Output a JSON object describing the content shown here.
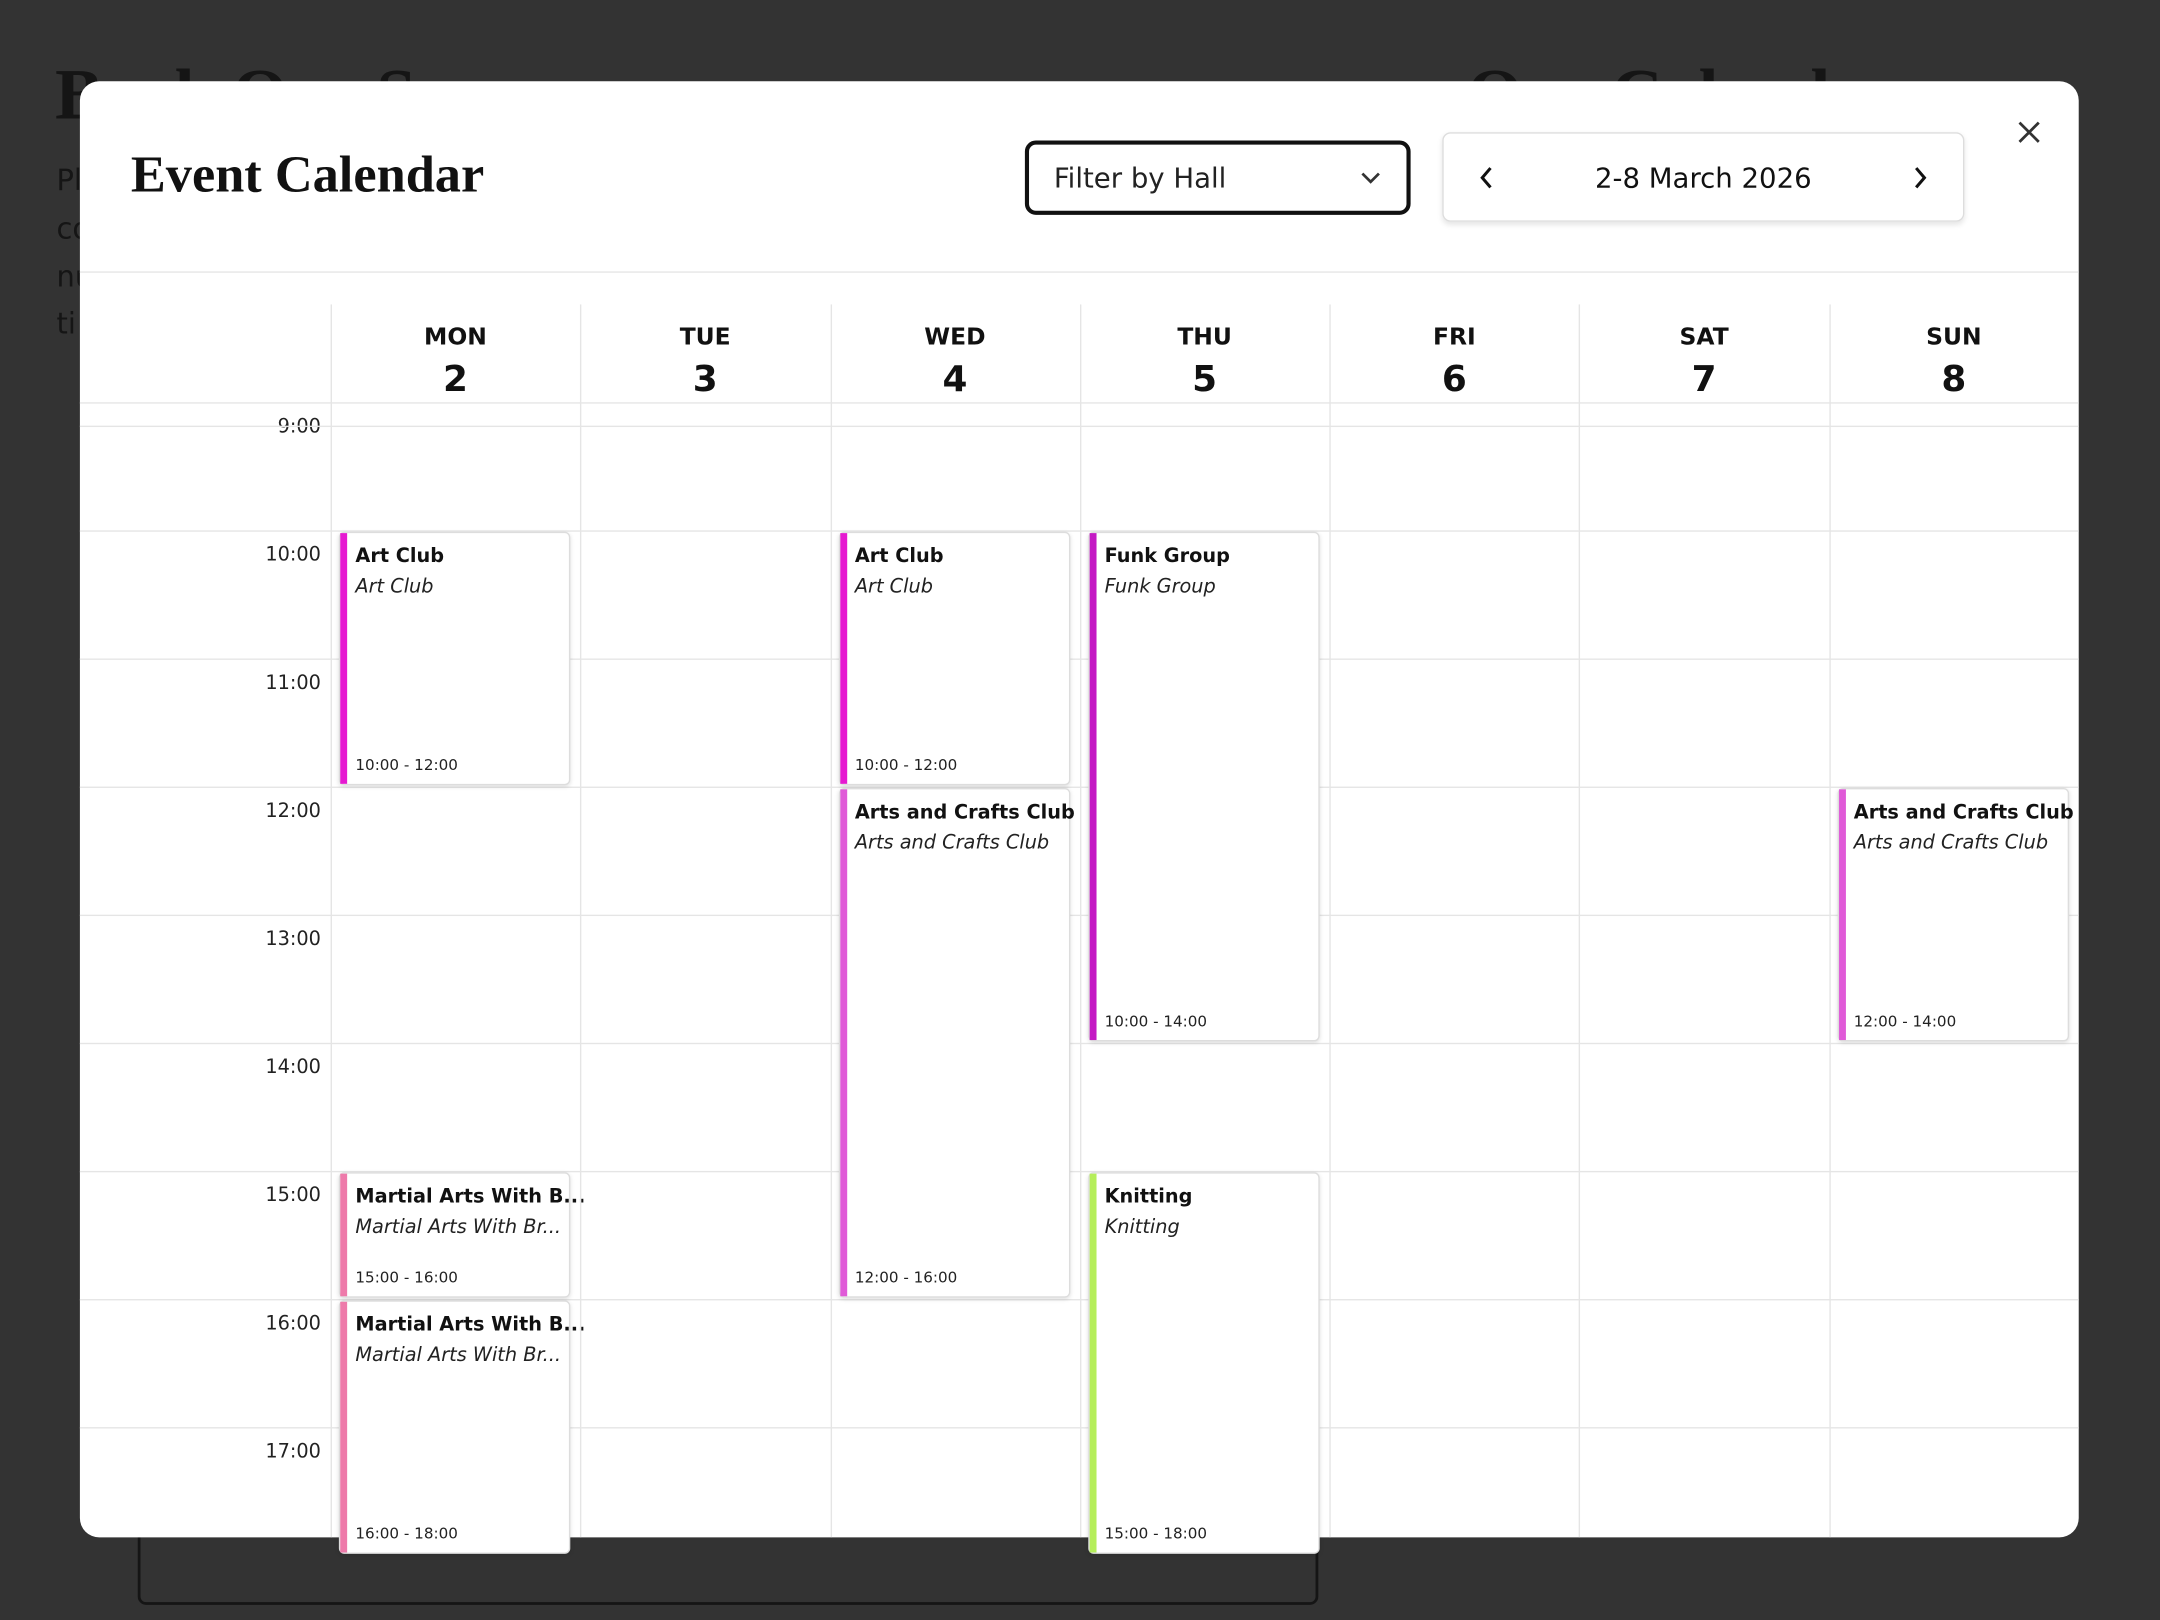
{
  "background": {
    "heading": "Book Our Space",
    "side_heading": "Our Calendar",
    "paragraph_fragments": [
      "Pl",
      "co",
      "nu",
      "ti"
    ]
  },
  "modal": {
    "title": "Event Calendar",
    "filter": "Filter by Hall",
    "week": "2-8 March 2026",
    "hours": [
      "9:00",
      "10:00",
      "11:00",
      "12:00",
      "13:00",
      "14:00",
      "15:00",
      "16:00",
      "17:00"
    ],
    "days": [
      {
        "name": "MON",
        "date": 2,
        "events": [
          {
            "title": "Art Club",
            "subtitle": "Art Club",
            "time": "10:00 - 12:00",
            "color": "#e619d1"
          },
          {
            "title": "Martial Arts With B...",
            "subtitle": "Martial Arts With Br...",
            "time": "15:00 - 16:00",
            "color": "#ee7aaa"
          },
          {
            "title": "Martial Arts With B...",
            "subtitle": "Martial Arts With Br...",
            "time": "16:00 - 18:00",
            "color": "#ee7aaa"
          }
        ]
      },
      {
        "name": "TUE",
        "date": 3,
        "events": []
      },
      {
        "name": "WED",
        "date": 4,
        "events": [
          {
            "title": "Art Club",
            "subtitle": "Art Club",
            "time": "10:00 - 12:00",
            "color": "#e619d1"
          },
          {
            "title": "Arts and Crafts Club",
            "subtitle": "Arts and Crafts Club",
            "time": "12:00 - 16:00",
            "color": "#e05ad8"
          }
        ]
      },
      {
        "name": "THU",
        "date": 5,
        "events": [
          {
            "title": "Funk Group",
            "subtitle": "Funk Group",
            "time": "10:00 - 14:00",
            "color": "#c41ac4"
          },
          {
            "title": "Knitting",
            "subtitle": "Knitting",
            "time": "15:00 - 18:00",
            "color": "#b5ee5a"
          }
        ]
      },
      {
        "name": "FRI",
        "date": 6,
        "events": []
      },
      {
        "name": "SAT",
        "date": 7,
        "events": []
      },
      {
        "name": "SUN",
        "date": 8,
        "events": [
          {
            "title": "Arts and Crafts Club",
            "subtitle": "Arts and Crafts Club",
            "time": "12:00 - 14:00",
            "color": "#e05ad8"
          }
        ]
      }
    ]
  }
}
